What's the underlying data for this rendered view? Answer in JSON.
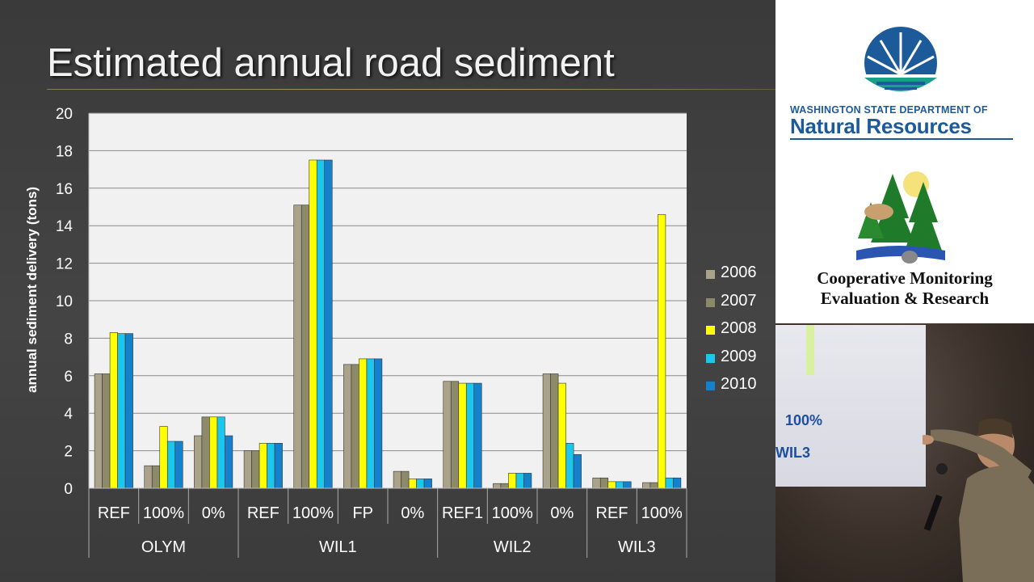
{
  "slide": {
    "title": "Estimated annual road sediment"
  },
  "chart_data": {
    "type": "bar",
    "ylabel": "annual sediment delivery (tons)",
    "ylim": [
      0,
      20
    ],
    "yticks": [
      "0",
      "2",
      "4",
      "6",
      "8",
      "10",
      "12",
      "14",
      "16",
      "18",
      "20"
    ],
    "grid": true,
    "legend_position": "right",
    "groups": [
      {
        "name": "OLYM",
        "categories": [
          "REF",
          "100%",
          "0%"
        ]
      },
      {
        "name": "WIL1",
        "categories": [
          "REF",
          "100%",
          "FP",
          "0%"
        ]
      },
      {
        "name": "WIL2",
        "categories": [
          "REF1",
          "100%",
          "0%"
        ]
      },
      {
        "name": "WIL3",
        "categories": [
          "REF",
          "100%"
        ]
      }
    ],
    "categories": [
      "REF",
      "100%",
      "0%",
      "REF",
      "100%",
      "FP",
      "0%",
      "REF1",
      "100%",
      "0%",
      "REF",
      "100%"
    ],
    "series": [
      {
        "name": "2006",
        "color": "#aaa38a",
        "values": [
          6.1,
          1.2,
          2.8,
          2.0,
          15.1,
          6.6,
          0.9,
          5.7,
          0.25,
          6.1,
          0.55,
          0.3
        ]
      },
      {
        "name": "2007",
        "color": "#8d8a6a",
        "values": [
          6.1,
          1.2,
          3.8,
          2.0,
          15.1,
          6.6,
          0.9,
          5.7,
          0.25,
          6.1,
          0.55,
          0.3
        ]
      },
      {
        "name": "2008",
        "color": "#ffff00",
        "values": [
          8.3,
          3.3,
          3.8,
          2.4,
          17.5,
          6.9,
          0.5,
          5.6,
          0.8,
          5.6,
          0.35,
          14.6
        ]
      },
      {
        "name": "2009",
        "color": "#1cc6ec",
        "values": [
          8.25,
          2.5,
          3.8,
          2.4,
          17.5,
          6.9,
          0.5,
          5.6,
          0.8,
          2.4,
          0.35,
          0.55
        ]
      },
      {
        "name": "2010",
        "color": "#1580cc",
        "values": [
          8.25,
          2.5,
          2.8,
          2.4,
          17.5,
          6.9,
          0.5,
          5.6,
          0.8,
          1.8,
          0.35,
          0.55
        ]
      }
    ]
  },
  "logos": {
    "dnr_line1": "WASHINGTON STATE DEPARTMENT OF",
    "dnr_line2": "Natural Resources",
    "cmer_line1": "Cooperative Monitoring",
    "cmer_line2": "Evaluation & Research"
  },
  "video": {
    "screen_text1": "100%",
    "screen_text2": "WIL3"
  }
}
